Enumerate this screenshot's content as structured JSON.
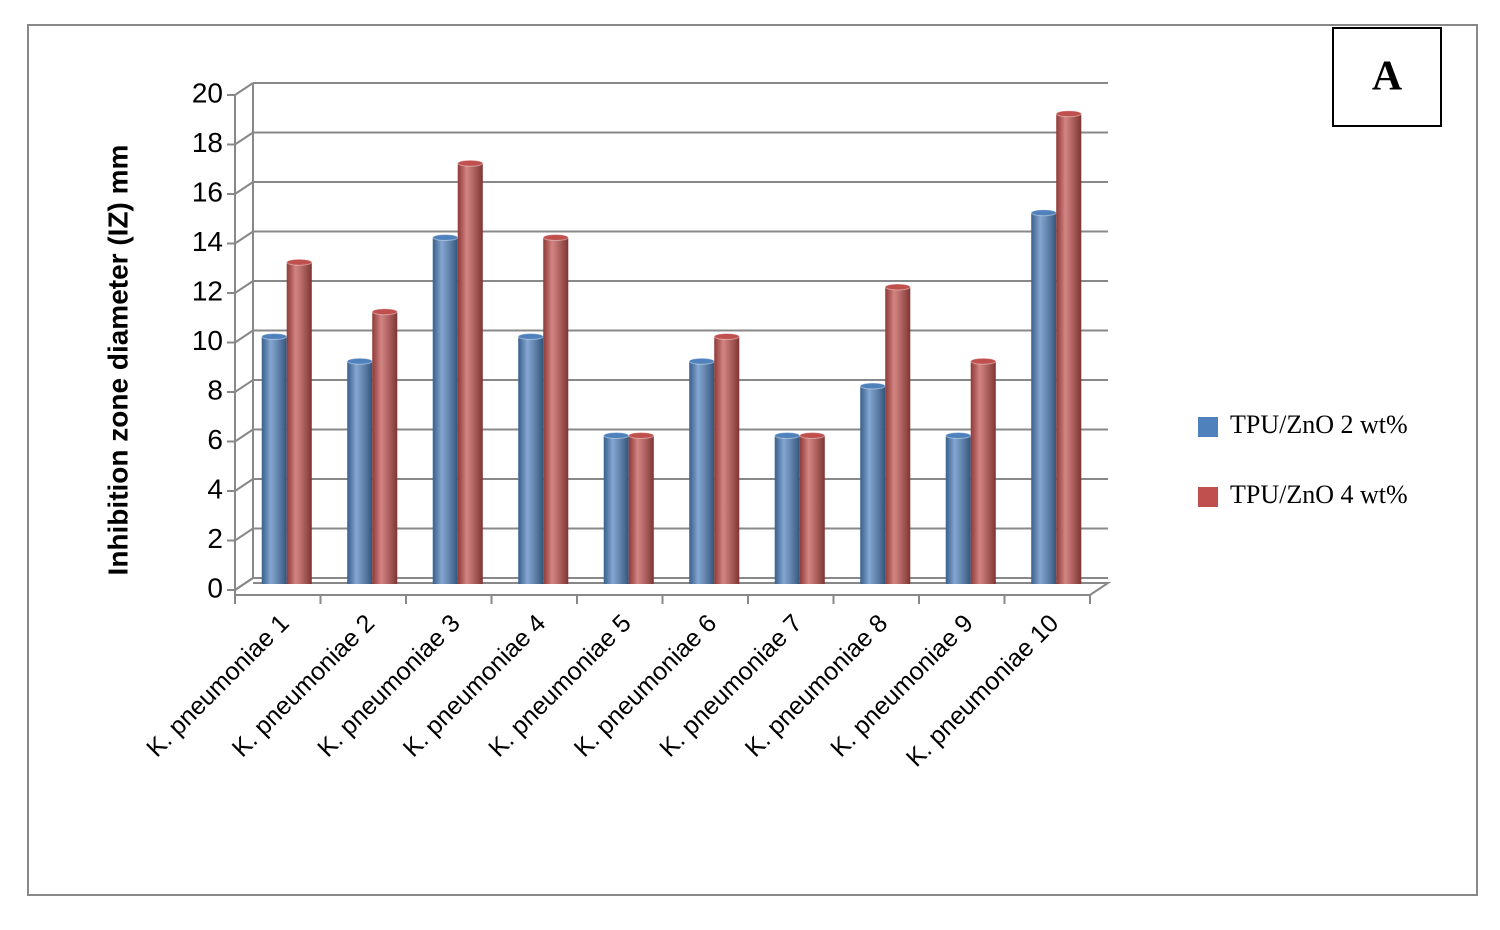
{
  "chart_data": {
    "type": "bar",
    "panel_label": "A",
    "y_label": "Inhibition zone diameter (IZ) mm",
    "categories": [
      "K. pneumoniae 1",
      "K. pneumoniae 2",
      "K. pneumoniae 3",
      "K. pneumoniae 4",
      "K. pneumoniae 5",
      "K. pneumoniae 6",
      "K. pneumoniae 7",
      "K. pneumoniae 8",
      "K. pneumoniae 9",
      "K. pneumoniae 10"
    ],
    "series": [
      {
        "name": "TPU/ZnO 2 wt%",
        "color": "#4f81bd",
        "values": [
          10,
          9,
          14,
          10,
          6,
          9,
          6,
          8,
          6,
          15
        ]
      },
      {
        "name": "TPU/ZnO 4 wt%",
        "color": "#c0504d",
        "values": [
          13,
          11,
          17,
          14,
          6,
          10,
          6,
          12,
          9,
          19
        ]
      }
    ],
    "ylim": [
      0,
      20
    ],
    "yticks": [
      0,
      2,
      4,
      6,
      8,
      10,
      12,
      14,
      16,
      18,
      20
    ],
    "grid": true,
    "legend": "right"
  }
}
